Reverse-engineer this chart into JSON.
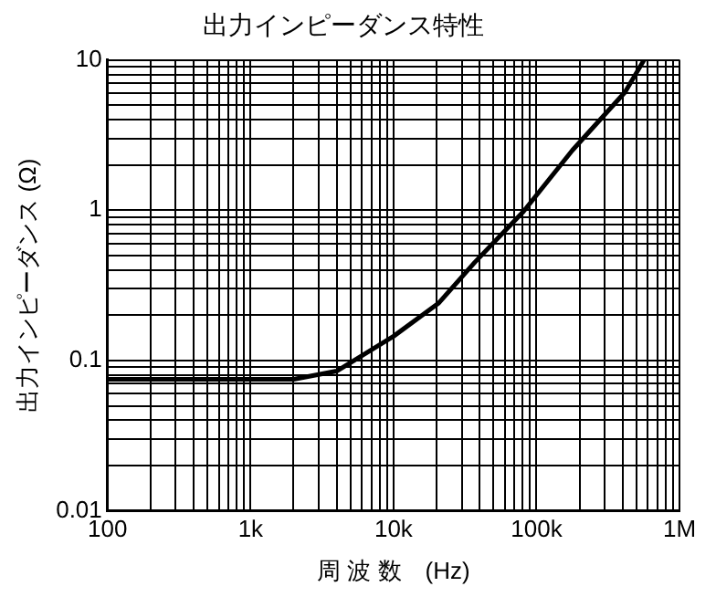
{
  "chart_data": {
    "type": "line",
    "title": "出力インピーダンス特性",
    "xlabel": "周 波 数　(Hz)",
    "ylabel": "出力インピーダンス (Ω)",
    "log": "xy",
    "grid": true,
    "legend": false,
    "marker": "none",
    "line_style": "solid",
    "x": [
      100,
      2000,
      4000,
      10000,
      20600,
      37000,
      81000,
      178000,
      416000,
      566000
    ],
    "series": [
      {
        "color": "#000000",
        "values": [
          0.075,
          0.075,
          0.085,
          0.145,
          0.24,
          0.45,
          0.98,
          2.5,
          6.1,
          10
        ]
      }
    ],
    "xlim": [
      100,
      1000000
    ],
    "ylim": [
      0.01,
      10
    ],
    "xticks": [
      {
        "value": 100,
        "label": "100"
      },
      {
        "value": 200,
        "label": null
      },
      {
        "value": 300,
        "label": null
      },
      {
        "value": 400,
        "label": null
      },
      {
        "value": 500,
        "label": null
      },
      {
        "value": 600,
        "label": null
      },
      {
        "value": 700,
        "label": null
      },
      {
        "value": 800,
        "label": null
      },
      {
        "value": 900,
        "label": null
      },
      {
        "value": 1000,
        "label": "1k"
      },
      {
        "value": 2000,
        "label": null
      },
      {
        "value": 3000,
        "label": null
      },
      {
        "value": 4000,
        "label": null
      },
      {
        "value": 5000,
        "label": null
      },
      {
        "value": 6000,
        "label": null
      },
      {
        "value": 7000,
        "label": null
      },
      {
        "value": 8000,
        "label": null
      },
      {
        "value": 9000,
        "label": null
      },
      {
        "value": 10000,
        "label": "10k"
      },
      {
        "value": 20000,
        "label": null
      },
      {
        "value": 30000,
        "label": null
      },
      {
        "value": 40000,
        "label": null
      },
      {
        "value": 50000,
        "label": null
      },
      {
        "value": 60000,
        "label": null
      },
      {
        "value": 70000,
        "label": null
      },
      {
        "value": 80000,
        "label": null
      },
      {
        "value": 90000,
        "label": null
      },
      {
        "value": 100000,
        "label": "100k"
      },
      {
        "value": 200000,
        "label": null
      },
      {
        "value": 300000,
        "label": null
      },
      {
        "value": 400000,
        "label": null
      },
      {
        "value": 500000,
        "label": null
      },
      {
        "value": 600000,
        "label": null
      },
      {
        "value": 700000,
        "label": null
      },
      {
        "value": 800000,
        "label": null
      },
      {
        "value": 900000,
        "label": null
      },
      {
        "value": 1000000,
        "label": "1M"
      }
    ],
    "yticks": [
      0.01,
      {
        "value": 0.02,
        "label": null
      },
      {
        "value": 0.03,
        "label": null
      },
      {
        "value": 0.04,
        "label": null
      },
      {
        "value": 0.05,
        "label": null
      },
      {
        "value": 0.06,
        "label": null
      },
      {
        "value": 0.07,
        "label": null
      },
      {
        "value": 0.08,
        "label": null
      },
      {
        "value": 0.09,
        "label": null
      },
      0.1,
      {
        "value": 0.2,
        "label": null
      },
      {
        "value": 0.3,
        "label": null
      },
      {
        "value": 0.4,
        "label": null
      },
      {
        "value": 0.5,
        "label": null
      },
      {
        "value": 0.6,
        "label": null
      },
      {
        "value": 0.7,
        "label": null
      },
      {
        "value": 0.8,
        "label": null
      },
      {
        "value": 0.9,
        "label": null
      },
      1,
      {
        "value": 2,
        "label": null
      },
      {
        "value": 3,
        "label": null
      },
      {
        "value": 4,
        "label": null
      },
      {
        "value": 5,
        "label": null
      },
      {
        "value": 6,
        "label": null
      },
      {
        "value": 7,
        "label": null
      },
      {
        "value": 8,
        "label": null
      },
      {
        "value": 9,
        "label": null
      },
      10
    ]
  }
}
